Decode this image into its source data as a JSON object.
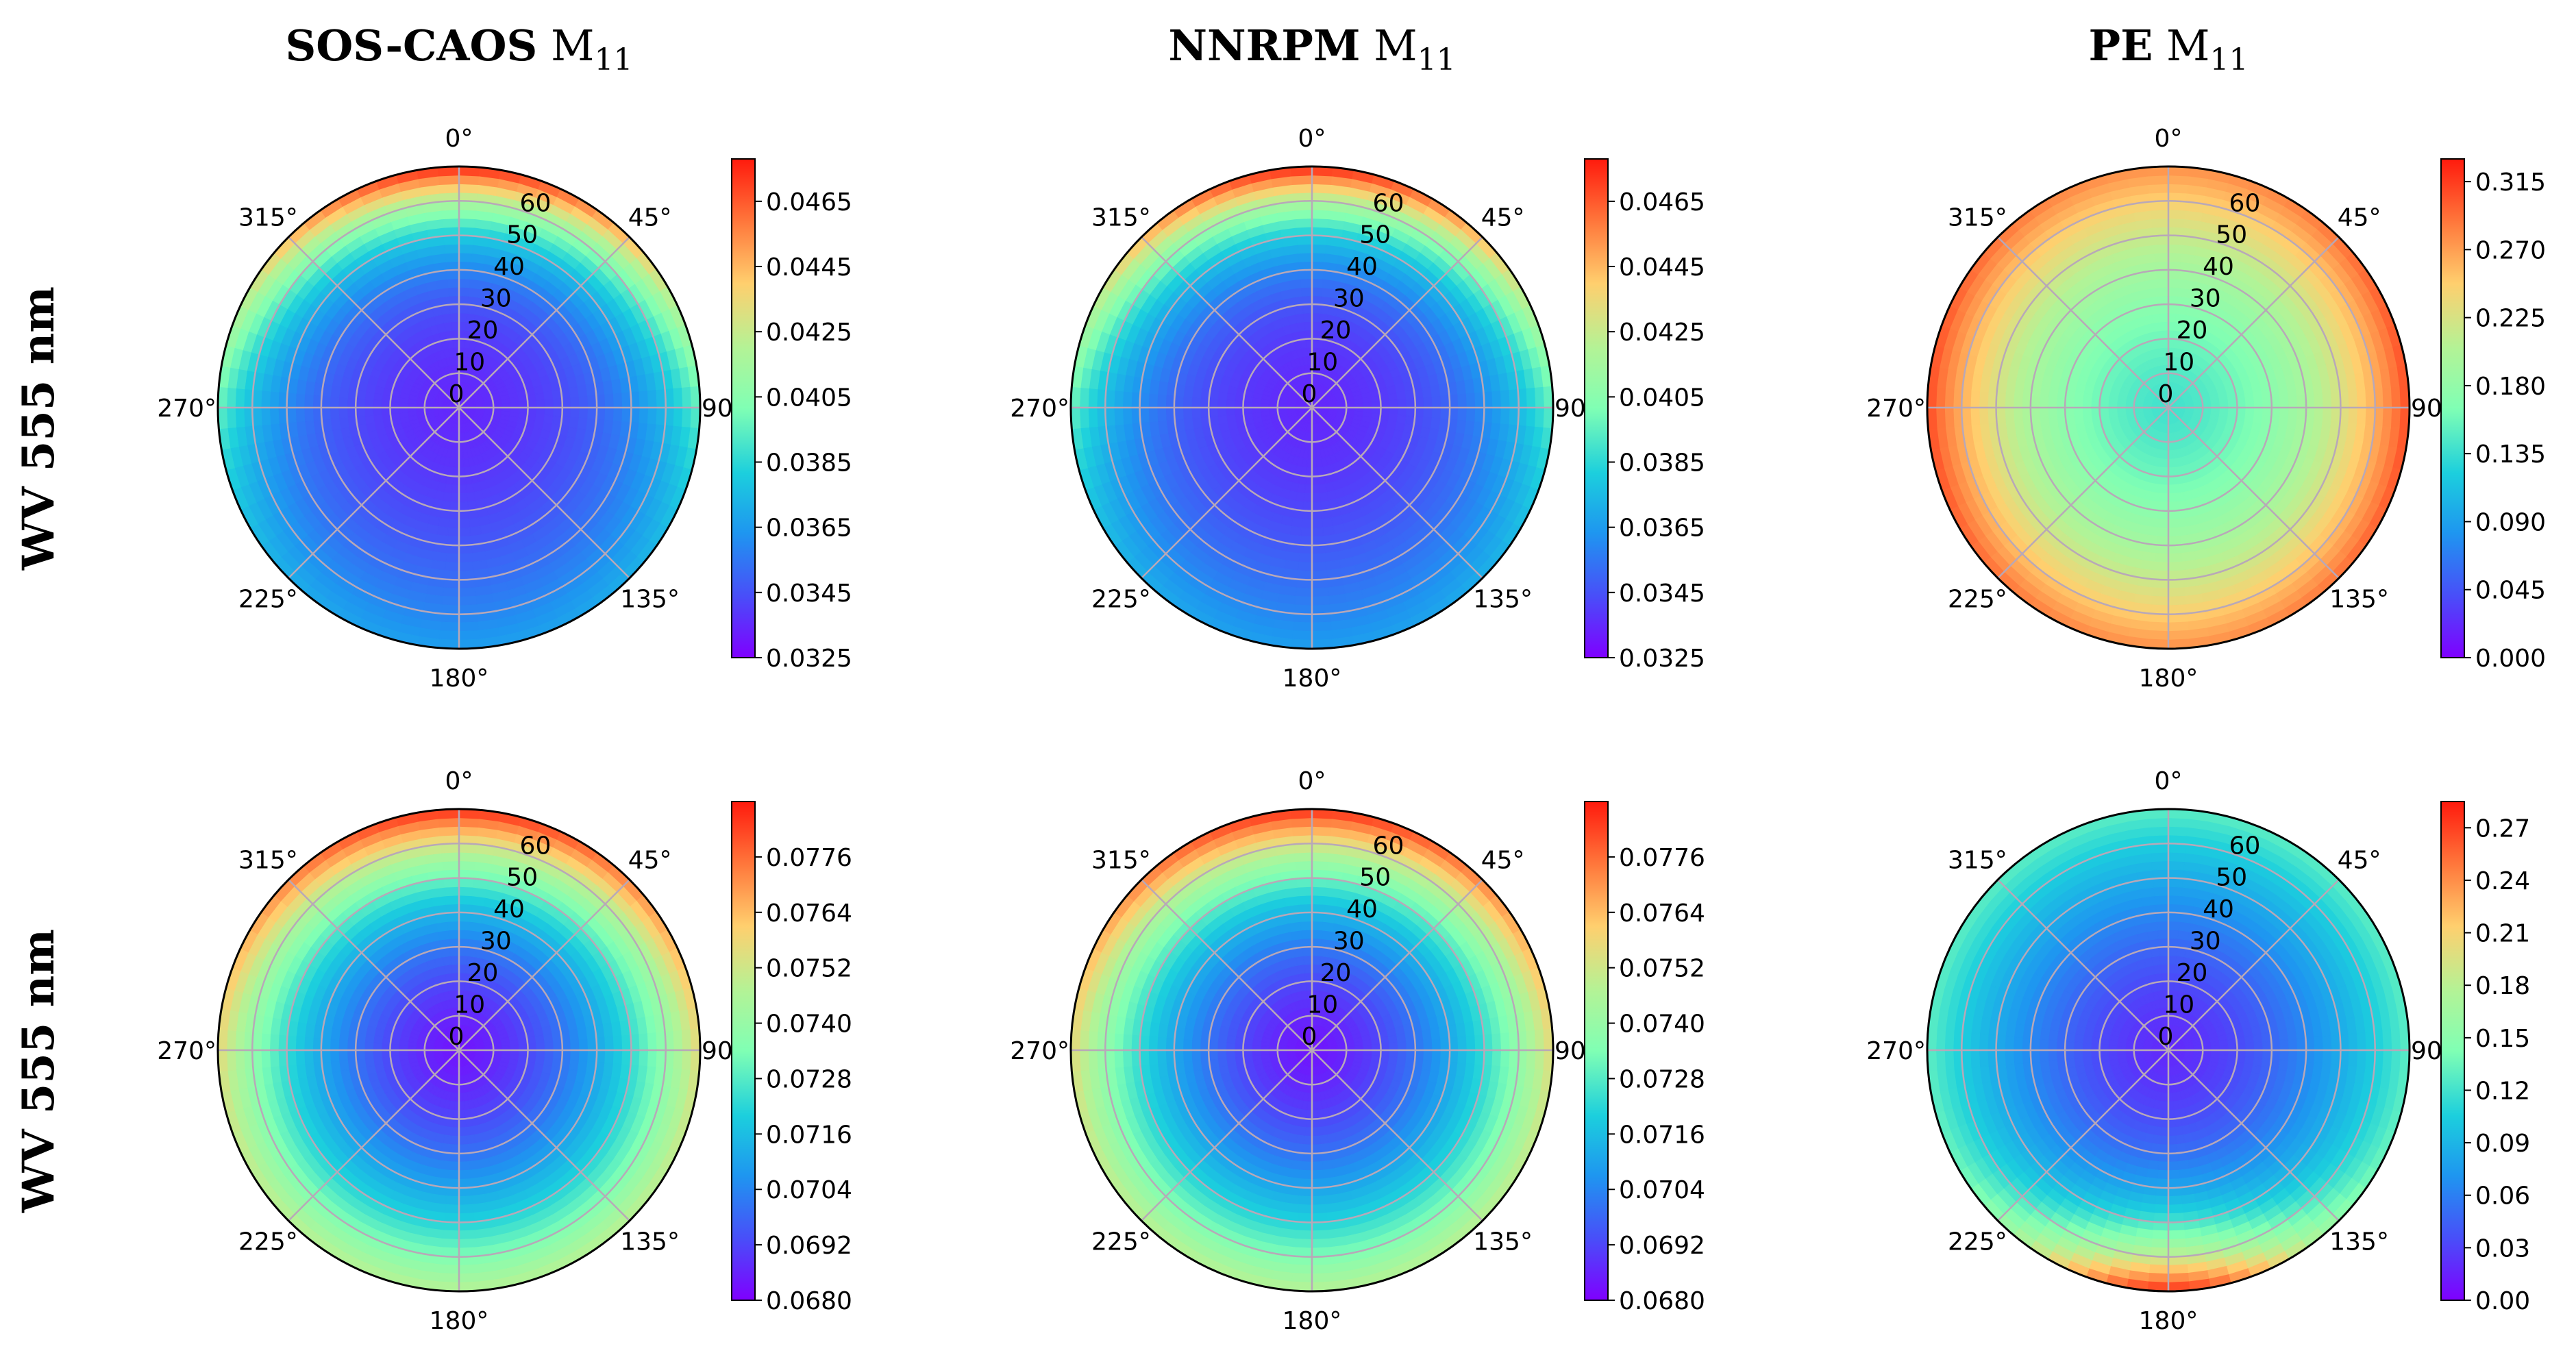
{
  "figure": {
    "column_titles": [
      {
        "bold": "SOS-CAOS",
        "regular": "M",
        "sub": "11"
      },
      {
        "bold": "NNRPM",
        "regular": "M",
        "sub": "11"
      },
      {
        "bold": "PE",
        "regular": "M",
        "sub": "11"
      }
    ],
    "row_labels": [
      "WV 555 nm",
      "WV 555 nm"
    ],
    "angle_labels": [
      "0°",
      "45°",
      "90",
      "135°",
      "180°",
      "225°",
      "270°",
      "315°"
    ],
    "radial_labels": [
      "0",
      "10",
      "20",
      "30",
      "40",
      "50",
      "60"
    ]
  },
  "chart_data": [
    {
      "type": "heatmap",
      "projection": "polar",
      "row": 0,
      "col": 0,
      "title": "SOS-CAOS M11",
      "ylabel": "WV 555 nm",
      "theta_ticks_deg": [
        0,
        45,
        90,
        135,
        180,
        225,
        270,
        315
      ],
      "r_ticks": [
        0,
        10,
        20,
        30,
        40,
        50,
        60
      ],
      "r_max": 70,
      "field": {
        "center": 0.0335,
        "edge": 0.0365,
        "peak": 0.0478,
        "peak_theta": 0,
        "peak_width": 80,
        "cold_hole": 0
      },
      "colorbar": {
        "min": 0.0325,
        "max": 0.0478,
        "ticks": [
          0.0325,
          0.0345,
          0.0365,
          0.0385,
          0.0405,
          0.0425,
          0.0445,
          0.0465
        ],
        "tick_labels": [
          "0.0325",
          "0.0345",
          "0.0365",
          "0.0385",
          "0.0405",
          "0.0425",
          "0.0445",
          "0.0465"
        ]
      }
    },
    {
      "type": "heatmap",
      "projection": "polar",
      "row": 0,
      "col": 1,
      "title": "NNRPM M11",
      "ylabel": "WV 555 nm",
      "theta_ticks_deg": [
        0,
        45,
        90,
        135,
        180,
        225,
        270,
        315
      ],
      "r_ticks": [
        0,
        10,
        20,
        30,
        40,
        50,
        60
      ],
      "r_max": 70,
      "field": {
        "center": 0.0335,
        "edge": 0.0365,
        "peak": 0.0478,
        "peak_theta": 0,
        "peak_width": 80,
        "cold_hole": 0
      },
      "colorbar": {
        "min": 0.0325,
        "max": 0.0478,
        "ticks": [
          0.0325,
          0.0345,
          0.0365,
          0.0385,
          0.0405,
          0.0425,
          0.0445,
          0.0465
        ],
        "tick_labels": [
          "0.0325",
          "0.0345",
          "0.0365",
          "0.0385",
          "0.0405",
          "0.0425",
          "0.0445",
          "0.0465"
        ]
      }
    },
    {
      "type": "heatmap",
      "projection": "polar",
      "row": 0,
      "col": 2,
      "title": "PE M11",
      "ylabel": "WV 555 nm",
      "theta_ticks_deg": [
        0,
        45,
        90,
        135,
        180,
        225,
        270,
        315
      ],
      "r_ticks": [
        0,
        10,
        20,
        30,
        40,
        50,
        60
      ],
      "r_max": 70,
      "field": {
        "center": 0.14,
        "edge": 0.27,
        "peak": 0.31,
        "peak_theta": 90,
        "peak_width": 60,
        "cold_hole": 0.0
      },
      "colorbar": {
        "min": 0.0,
        "max": 0.33,
        "ticks": [
          0.0,
          0.045,
          0.09,
          0.135,
          0.18,
          0.225,
          0.27,
          0.315
        ],
        "tick_labels": [
          "0.000",
          "0.045",
          "0.090",
          "0.135",
          "0.180",
          "0.225",
          "0.270",
          "0.315"
        ]
      }
    },
    {
      "type": "heatmap",
      "projection": "polar",
      "row": 1,
      "col": 0,
      "title": "",
      "ylabel": "WV 555 nm",
      "theta_ticks_deg": [
        0,
        45,
        90,
        135,
        180,
        225,
        270,
        315
      ],
      "r_ticks": [
        0,
        10,
        20,
        30,
        40,
        50,
        60
      ],
      "r_max": 70,
      "field": {
        "center": 0.0684,
        "edge": 0.0748,
        "peak": 0.0786,
        "peak_theta": 0,
        "peak_width": 75,
        "cold_hole": 0
      },
      "colorbar": {
        "min": 0.068,
        "max": 0.0788,
        "ticks": [
          0.068,
          0.0692,
          0.0704,
          0.0716,
          0.0728,
          0.074,
          0.0752,
          0.0764,
          0.0776
        ],
        "tick_labels": [
          "0.0680",
          "0.0692",
          "0.0704",
          "0.0716",
          "0.0728",
          "0.0740",
          "0.0752",
          "0.0764",
          "0.0776"
        ]
      }
    },
    {
      "type": "heatmap",
      "projection": "polar",
      "row": 1,
      "col": 1,
      "title": "",
      "ylabel": "WV 555 nm",
      "theta_ticks_deg": [
        0,
        45,
        90,
        135,
        180,
        225,
        270,
        315
      ],
      "r_ticks": [
        0,
        10,
        20,
        30,
        40,
        50,
        60
      ],
      "r_max": 70,
      "field": {
        "center": 0.0684,
        "edge": 0.0748,
        "peak": 0.0786,
        "peak_theta": 0,
        "peak_width": 75,
        "cold_hole": 0
      },
      "colorbar": {
        "min": 0.068,
        "max": 0.0788,
        "ticks": [
          0.068,
          0.0692,
          0.0704,
          0.0716,
          0.0728,
          0.074,
          0.0752,
          0.0764,
          0.0776
        ],
        "tick_labels": [
          "0.0680",
          "0.0692",
          "0.0704",
          "0.0716",
          "0.0728",
          "0.0740",
          "0.0752",
          "0.0764",
          "0.0776"
        ]
      }
    },
    {
      "type": "heatmap",
      "projection": "polar",
      "row": 1,
      "col": 2,
      "title": "",
      "ylabel": "WV 555 nm",
      "theta_ticks_deg": [
        0,
        45,
        90,
        135,
        180,
        225,
        270,
        315
      ],
      "r_ticks": [
        0,
        10,
        20,
        30,
        40,
        50,
        60
      ],
      "r_max": 70,
      "field": {
        "center": 0.02,
        "edge": 0.13,
        "peak": 0.28,
        "peak_theta": 180,
        "peak_width": 35,
        "cold_hole": 0.0
      },
      "colorbar": {
        "min": 0.0,
        "max": 0.285,
        "ticks": [
          0.0,
          0.03,
          0.06,
          0.09,
          0.12,
          0.15,
          0.18,
          0.21,
          0.24,
          0.27
        ],
        "tick_labels": [
          "0.00",
          "0.03",
          "0.06",
          "0.09",
          "0.12",
          "0.15",
          "0.18",
          "0.21",
          "0.24",
          "0.27"
        ]
      }
    }
  ]
}
